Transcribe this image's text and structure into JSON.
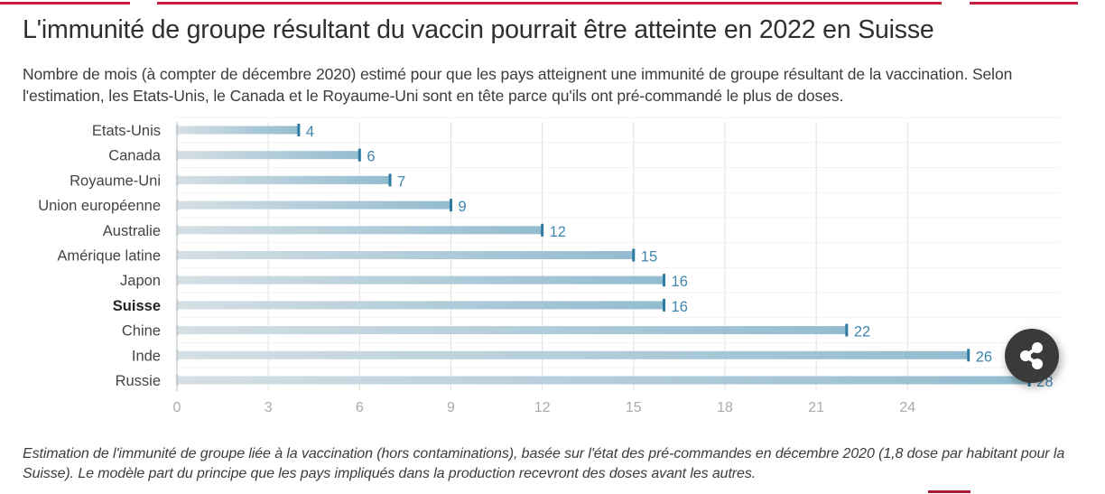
{
  "header": {
    "title": "L'immunité de groupe résultant du vaccin pourrait être atteinte en 2022 en Suisse",
    "subtitle": "Nombre de mois (à compter de décembre 2020) estimé pour que les pays atteignent une immunité de groupe résultant de la vaccination. Selon l'estimation, les Etats-Unis, le Canada et le Royaume-Uni sont en tête parce qu'ils ont pré-commandé le plus de doses."
  },
  "footer": {
    "note": "Estimation de l'immunité de groupe liée à la vaccination (hors contaminations), basée sur l'état des pré-commandes en décembre 2020 (1,8 dose par habitant pour la Suisse). Le modèle part du principe que les pays impliqués dans la production recevront des doses avant les autres."
  },
  "share_button": {
    "icon": "share-icon"
  },
  "colors": {
    "accent_red": "#c8203f",
    "bar_start": "#d5dfe4",
    "bar_end": "#92bcd0",
    "bar_cap": "#2f7aa0",
    "value_label": "#3f86ad"
  },
  "chart_data": {
    "type": "bar",
    "orientation": "horizontal",
    "title": "L'immunité de groupe résultant du vaccin pourrait être atteinte en 2022 en Suisse",
    "xlabel": "",
    "ylabel": "",
    "categories": [
      "Etats-Unis",
      "Canada",
      "Royaume-Uni",
      "Union européenne",
      "Australie",
      "Amérique latine",
      "Japon",
      "Suisse",
      "Chine",
      "Inde",
      "Russie"
    ],
    "values": [
      4,
      6,
      7,
      9,
      12,
      15,
      16,
      16,
      22,
      26,
      28
    ],
    "value_labels": [
      "4",
      "6",
      "7",
      "9",
      "12",
      "15",
      "16",
      "16",
      "22",
      "26",
      "28"
    ],
    "highlight": "Suisse",
    "xlim": [
      0,
      29
    ],
    "xticks": [
      0,
      3,
      6,
      9,
      12,
      15,
      18,
      21,
      24
    ],
    "xtick_labels": [
      "0",
      "3",
      "6",
      "9",
      "12",
      "15",
      "18",
      "21",
      "24"
    ],
    "grid": true
  }
}
